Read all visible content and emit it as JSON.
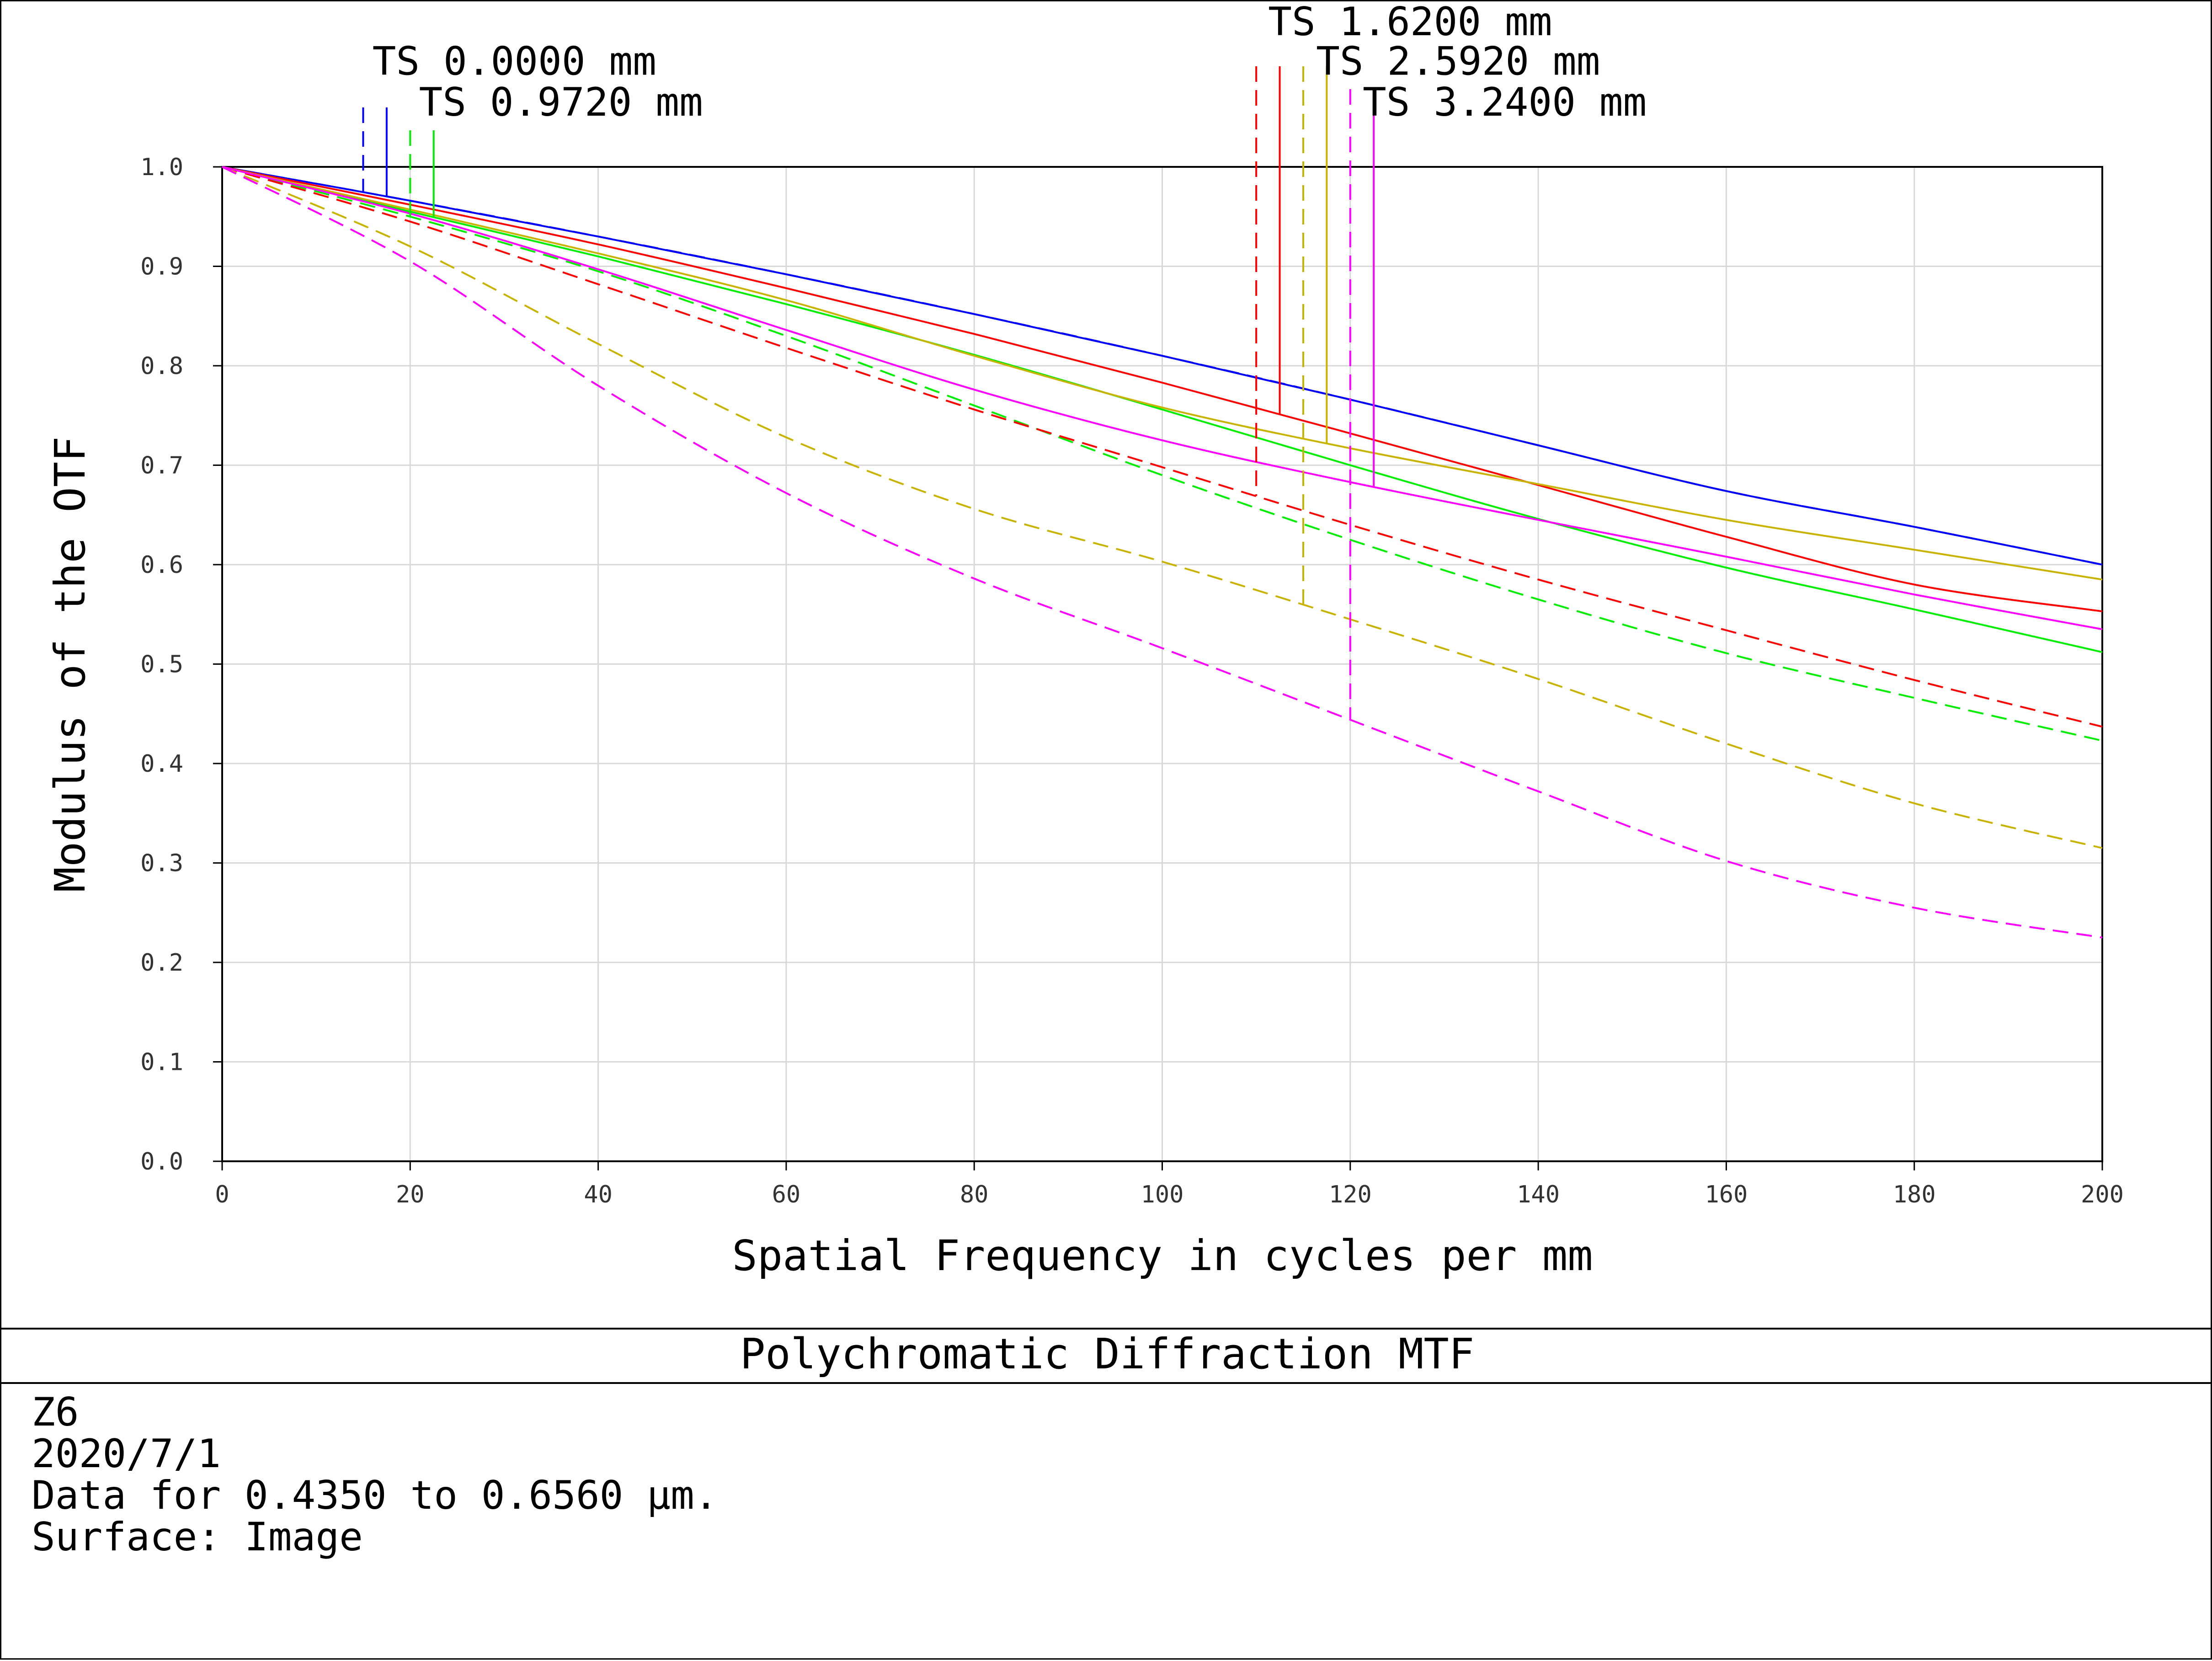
{
  "chart_data": {
    "type": "line",
    "title": "Polychromatic Diffraction MTF",
    "xlabel": "Spatial Frequency in cycles per mm",
    "ylabel": "Modulus of the OTF",
    "xlim": [
      0,
      200
    ],
    "ylim": [
      0,
      1.0
    ],
    "xticks": [
      0,
      20,
      40,
      60,
      80,
      100,
      120,
      140,
      160,
      180,
      200
    ],
    "yticks": [
      "0.0",
      "0.1",
      "0.2",
      "0.3",
      "0.4",
      "0.5",
      "0.6",
      "0.7",
      "0.8",
      "0.9",
      "1.0"
    ],
    "grid": true,
    "x": [
      0,
      20,
      40,
      60,
      80,
      100,
      120,
      140,
      160,
      180,
      200
    ],
    "legend": [
      "TS 0.0000 mm",
      "TS 0.9720 mm",
      "TS 1.6200 mm",
      "TS 2.5920 mm",
      "TS 3.2400 mm"
    ],
    "series": [
      {
        "field": "TS 0.0000 mm",
        "orientation": "T",
        "color": "#0000ff",
        "dashed": false,
        "values": [
          1.0,
          0.966,
          0.93,
          0.892,
          0.852,
          0.81,
          0.766,
          0.72,
          0.674,
          0.638,
          0.6
        ]
      },
      {
        "field": "TS 0.0000 mm",
        "orientation": "S",
        "color": "#0000ff",
        "dashed": true,
        "values": [
          1.0,
          0.966,
          0.93,
          0.892,
          0.852,
          0.81,
          0.766,
          0.72,
          0.674,
          0.638,
          0.6
        ]
      },
      {
        "field": "TS 0.9720 mm",
        "orientation": "T",
        "color": "#00ee00",
        "dashed": false,
        "values": [
          1.0,
          0.955,
          0.91,
          0.862,
          0.811,
          0.756,
          0.7,
          0.646,
          0.597,
          0.555,
          0.512
        ]
      },
      {
        "field": "TS 0.9720 mm",
        "orientation": "S",
        "color": "#00ee00",
        "dashed": true,
        "values": [
          1.0,
          0.95,
          0.895,
          0.83,
          0.76,
          0.69,
          0.625,
          0.565,
          0.511,
          0.466,
          0.423
        ]
      },
      {
        "field": "TS 1.6200 mm",
        "orientation": "T",
        "color": "#ff0000",
        "dashed": false,
        "values": [
          1.0,
          0.962,
          0.922,
          0.878,
          0.832,
          0.783,
          0.732,
          0.68,
          0.628,
          0.58,
          0.553
        ]
      },
      {
        "field": "TS 1.6200 mm",
        "orientation": "S",
        "color": "#ff0000",
        "dashed": true,
        "values": [
          1.0,
          0.945,
          0.882,
          0.818,
          0.756,
          0.698,
          0.64,
          0.585,
          0.534,
          0.484,
          0.437
        ]
      },
      {
        "field": "TS 2.5920 mm",
        "orientation": "T",
        "color": "#c8b400",
        "dashed": false,
        "values": [
          1.0,
          0.957,
          0.913,
          0.866,
          0.81,
          0.758,
          0.717,
          0.681,
          0.645,
          0.615,
          0.585
        ]
      },
      {
        "field": "TS 2.5920 mm",
        "orientation": "S",
        "color": "#c8b400",
        "dashed": true,
        "values": [
          1.0,
          0.92,
          0.822,
          0.728,
          0.656,
          0.603,
          0.545,
          0.485,
          0.42,
          0.36,
          0.315
        ]
      },
      {
        "field": "TS 3.2400 mm",
        "orientation": "T",
        "color": "#ff00ff",
        "dashed": false,
        "values": [
          1.0,
          0.953,
          0.897,
          0.836,
          0.776,
          0.725,
          0.683,
          0.645,
          0.608,
          0.57,
          0.535
        ]
      },
      {
        "field": "TS 3.2400 mm",
        "orientation": "S",
        "color": "#ff00ff",
        "dashed": true,
        "values": [
          1.0,
          0.905,
          0.78,
          0.672,
          0.586,
          0.516,
          0.444,
          0.372,
          0.302,
          0.255,
          0.225
        ]
      }
    ]
  },
  "info": {
    "line1": "Z6",
    "line2": "2020/7/1",
    "line3": "Data for 0.4350 to 0.6560 µm.",
    "line4": "Surface: Image"
  }
}
